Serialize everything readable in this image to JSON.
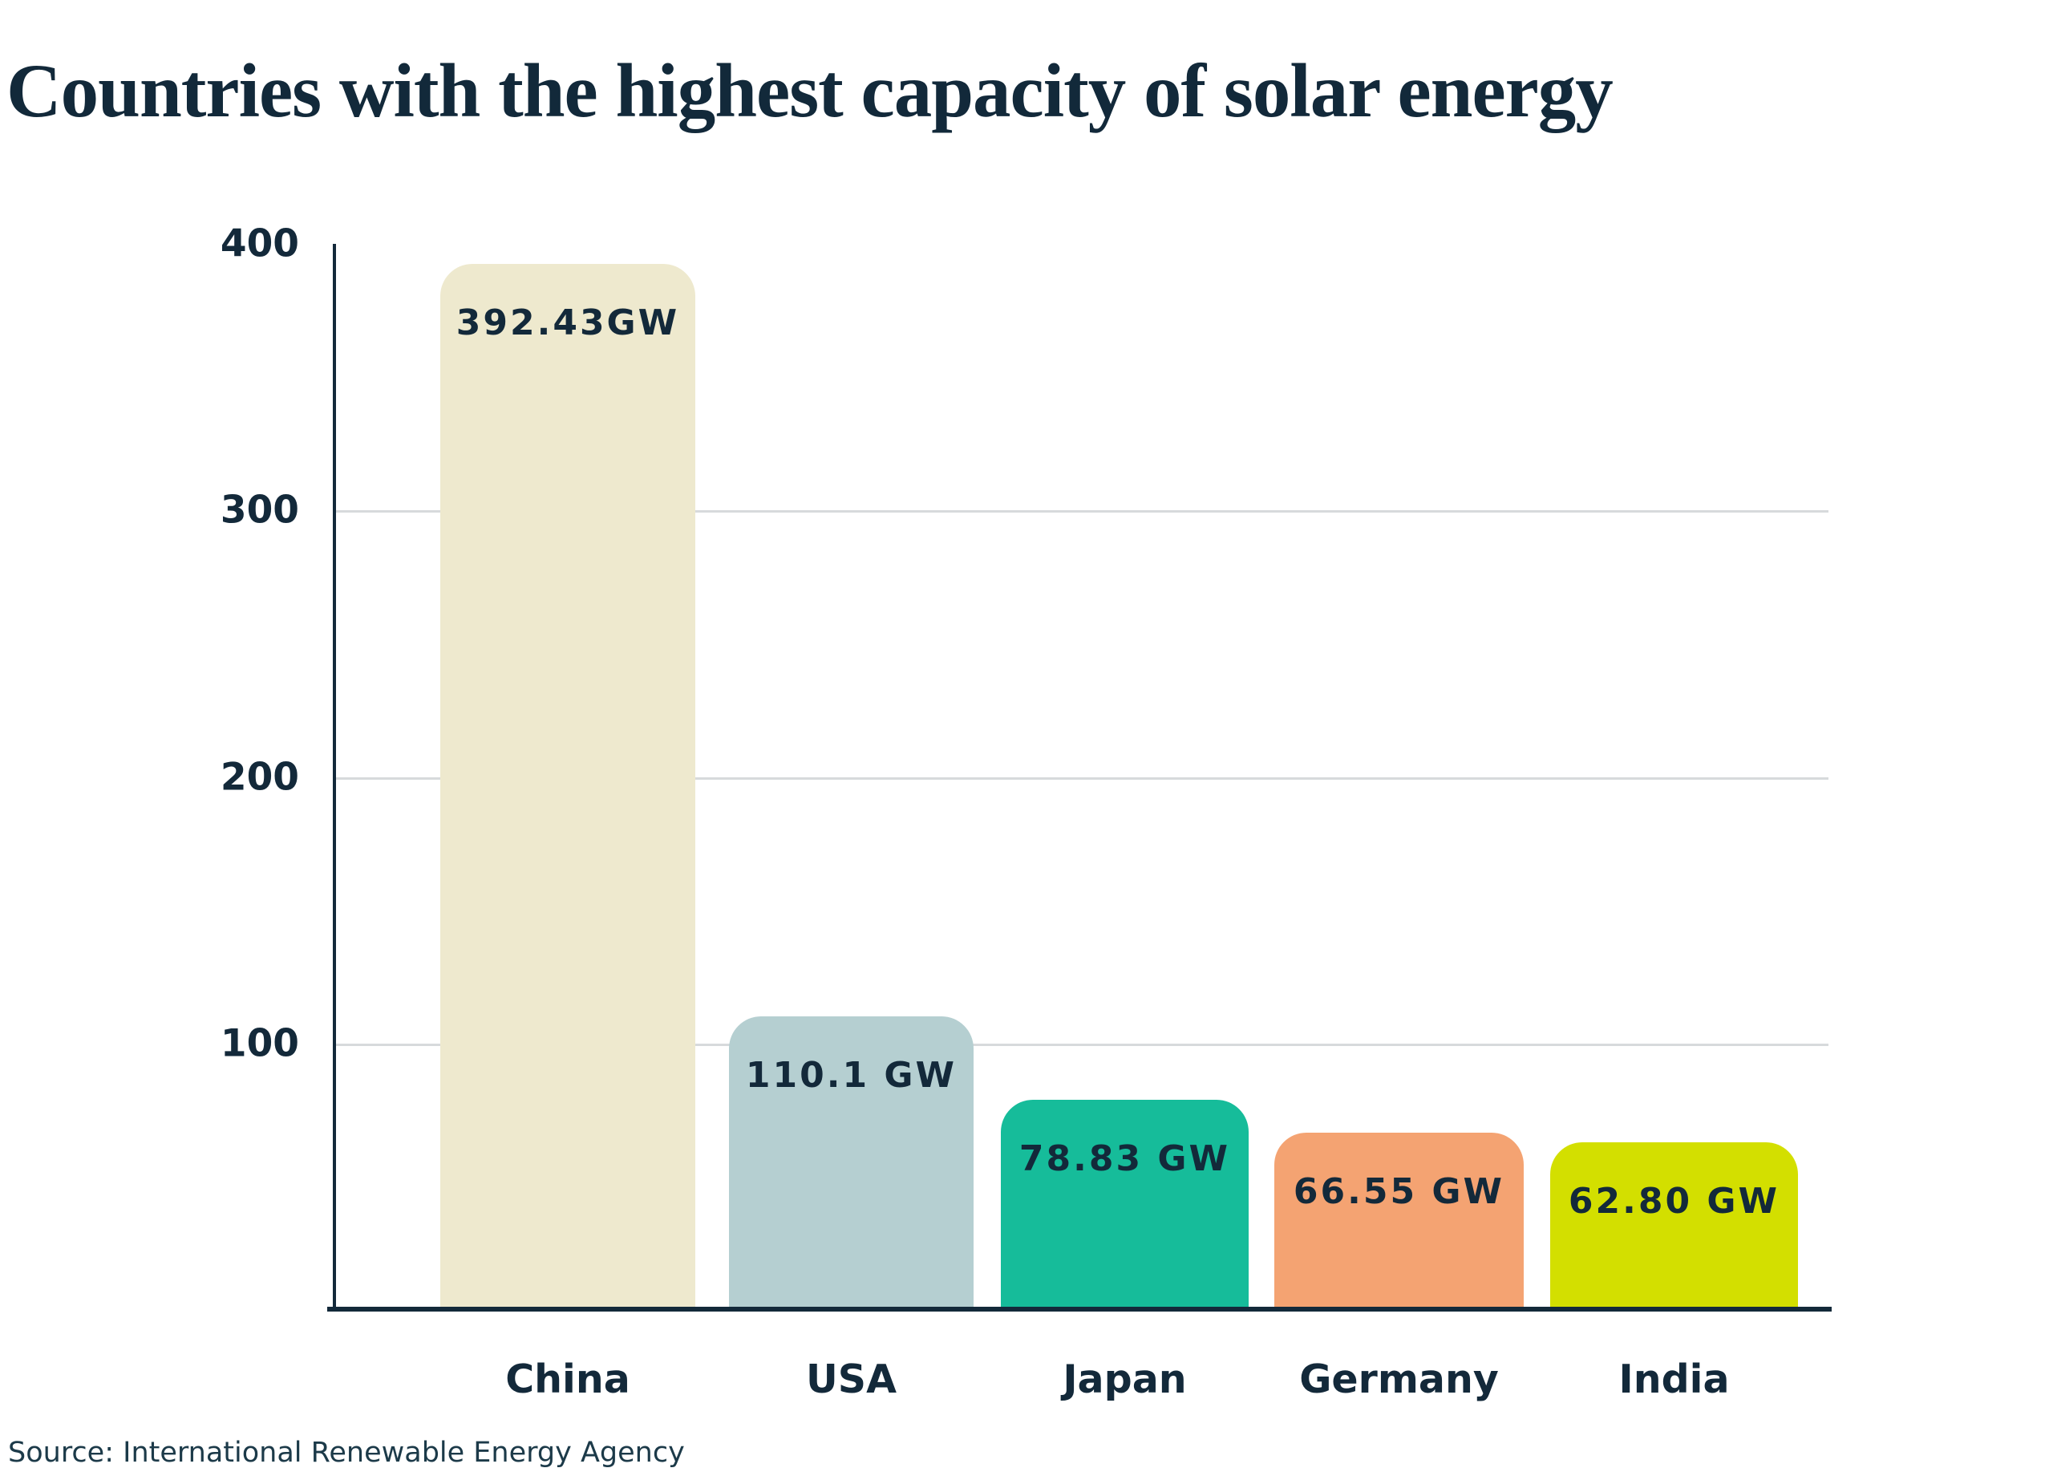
{
  "page": {
    "title": "Countries with the highest capacity of solar energy",
    "source": "Source: International Renewable Energy Agency"
  },
  "chart_data": {
    "type": "bar",
    "title": "Countries with the highest capacity of solar energy",
    "categories": [
      "China",
      "USA",
      "Japan",
      "Germany",
      "India"
    ],
    "values": [
      392.43,
      110.1,
      78.83,
      66.55,
      62.8
    ],
    "value_labels": [
      "392.43GW",
      "110.1 GW",
      "78.83 GW",
      "66.55 GW",
      "62.80 GW"
    ],
    "unit": "GW",
    "bar_colors": [
      "#EEE9CE",
      "#B5CFD1",
      "#16BC9A",
      "#F4A372",
      "#D3DF00"
    ],
    "label_color": "#13293A",
    "axis_color": "#13293A",
    "gridline_color": "#D7DADC",
    "background": "#FFFFFF",
    "ylim": [
      0,
      400
    ],
    "yticks": [
      400,
      300,
      200,
      100
    ],
    "gridlines": [
      300,
      200,
      100
    ],
    "xlabel": "",
    "ylabel": "",
    "grid": "horizontal",
    "legend": "none",
    "source": "Source: International Renewable Energy Agency"
  }
}
